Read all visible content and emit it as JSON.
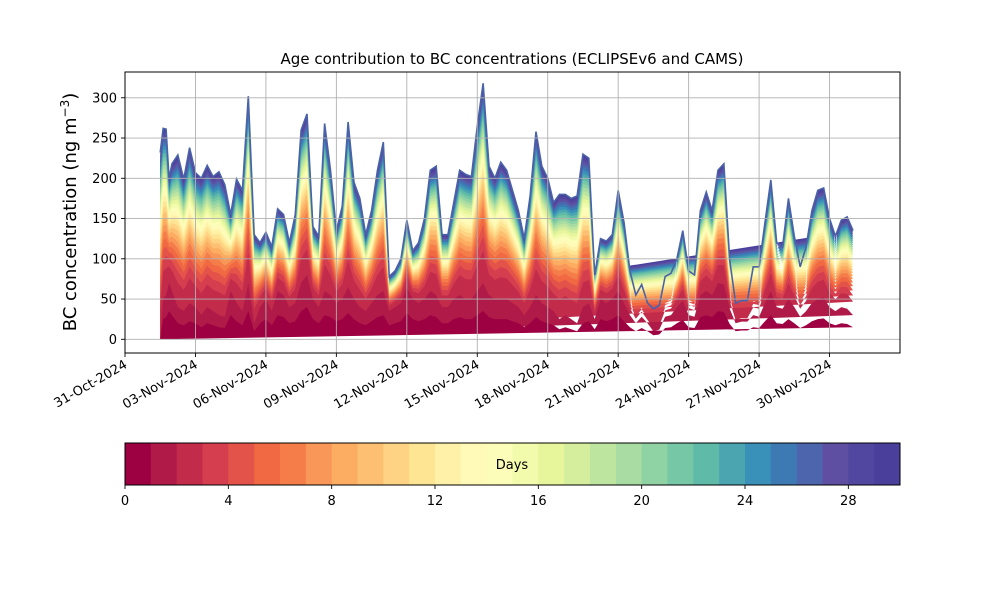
{
  "chart_data": {
    "type": "area",
    "title": "Age contribution to BC concentrations (ECLIPSEv6 and CAMS)",
    "xlabel": "",
    "ylabel": "BC concentration (ng m",
    "ylabel_superscript": "−3",
    "ylabel_suffix": ")",
    "ylim": [
      -17,
      332
    ],
    "xlim": [
      "2024-10-31T00:00",
      "2024-12-03T00:00"
    ],
    "grid": true,
    "x_tick_labels": [
      "31-Oct-2024",
      "03-Nov-2024",
      "06-Nov-2024",
      "09-Nov-2024",
      "12-Nov-2024",
      "15-Nov-2024",
      "18-Nov-2024",
      "21-Nov-2024",
      "24-Nov-2024",
      "27-Nov-2024",
      "30-Nov-2024"
    ],
    "x_tick_dates": [
      "2024-10-31",
      "2024-11-03",
      "2024-11-06",
      "2024-11-09",
      "2024-11-12",
      "2024-11-15",
      "2024-11-18",
      "2024-11-21",
      "2024-11-24",
      "2024-11-27",
      "2024-11-30"
    ],
    "y_ticks": [
      0,
      50,
      100,
      150,
      200,
      250,
      300
    ],
    "colorbar": {
      "label": "Days",
      "min": 0,
      "max": 30,
      "ticks": [
        0,
        4,
        8,
        12,
        16,
        20,
        24,
        28
      ],
      "n_bins": 30,
      "colormap": "Spectral",
      "colors": [
        "#9e0142",
        "#b01a48",
        "#c32b4b",
        "#d53e4f",
        "#e3534a",
        "#f06943",
        "#f57d4a",
        "#f99758",
        "#fcad61",
        "#fdc072",
        "#fed383",
        "#fee593",
        "#fff1a7",
        "#fffab8",
        "#fbfdb9",
        "#f2faac",
        "#e7f59b",
        "#d4ee9e",
        "#bee5a0",
        "#a8dca3",
        "#8fd2a4",
        "#75c7a5",
        "#60baa8",
        "#4aa5b1",
        "#3990b9",
        "#3d7ab4",
        "#4d65ad",
        "#5e4fa2",
        "#5146a0",
        "#4a3f9a"
      ]
    },
    "x": [
      "2024-11-01T12:00",
      "2024-11-01T15:00",
      "2024-11-01T18:00",
      "2024-11-01T21:00",
      "2024-11-02T00:00",
      "2024-11-02T06:00",
      "2024-11-02T12:00",
      "2024-11-02T18:00",
      "2024-11-03T00:00",
      "2024-11-03T06:00",
      "2024-11-03T12:00",
      "2024-11-03T18:00",
      "2024-11-04T00:00",
      "2024-11-04T06:00",
      "2024-11-04T12:00",
      "2024-11-04T18:00",
      "2024-11-05T00:00",
      "2024-11-05T06:00",
      "2024-11-05T12:00",
      "2024-11-05T18:00",
      "2024-11-06T00:00",
      "2024-11-06T06:00",
      "2024-11-06T12:00",
      "2024-11-06T18:00",
      "2024-11-07T00:00",
      "2024-11-07T06:00",
      "2024-11-07T12:00",
      "2024-11-07T18:00",
      "2024-11-08T00:00",
      "2024-11-08T06:00",
      "2024-11-08T12:00",
      "2024-11-08T18:00",
      "2024-11-09T00:00",
      "2024-11-09T06:00",
      "2024-11-09T12:00",
      "2024-11-09T18:00",
      "2024-11-10T00:00",
      "2024-11-10T06:00",
      "2024-11-10T12:00",
      "2024-11-10T18:00",
      "2024-11-11T00:00",
      "2024-11-11T06:00",
      "2024-11-11T12:00",
      "2024-11-11T18:00",
      "2024-11-12T00:00",
      "2024-11-12T06:00",
      "2024-11-12T12:00",
      "2024-11-12T18:00",
      "2024-11-13T00:00",
      "2024-11-13T06:00",
      "2024-11-13T12:00",
      "2024-11-13T18:00",
      "2024-11-14T00:00",
      "2024-11-14T06:00",
      "2024-11-14T12:00",
      "2024-11-14T18:00",
      "2024-11-15T00:00",
      "2024-11-15T06:00",
      "2024-11-15T12:00",
      "2024-11-15T18:00",
      "2024-11-16T00:00",
      "2024-11-16T06:00",
      "2024-11-16T12:00",
      "2024-11-16T18:00",
      "2024-11-17T00:00",
      "2024-11-17T06:00",
      "2024-11-17T12:00",
      "2024-11-17T18:00",
      "2024-11-18T00:00",
      "2024-11-18T06:00",
      "2024-11-18T12:00",
      "2024-11-18T18:00",
      "2024-11-19T00:00",
      "2024-11-19T06:00",
      "2024-11-19T12:00",
      "2024-11-19T18:00",
      "2024-11-20T00:00",
      "2024-11-20T06:00",
      "2024-11-20T12:00",
      "2024-11-20T18:00",
      "2024-11-21T00:00",
      "2024-11-21T06:00",
      "2024-11-21T12:00",
      "2024-11-21T18:00",
      "2024-11-22T00:00",
      "2024-11-22T06:00",
      "2024-11-22T12:00",
      "2024-11-22T18:00",
      "2024-11-23T00:00",
      "2024-11-23T06:00",
      "2024-11-23T12:00",
      "2024-11-23T18:00",
      "2024-11-24T00:00",
      "2024-11-24T06:00",
      "2024-11-24T12:00",
      "2024-11-24T18:00",
      "2024-11-25T00:00",
      "2024-11-25T06:00",
      "2024-11-25T12:00",
      "2024-11-25T18:00",
      "2024-11-26T00:00",
      "2024-11-26T06:00",
      "2024-11-26T12:00",
      "2024-11-26T18:00",
      "2024-11-27T00:00",
      "2024-11-27T06:00",
      "2024-11-27T12:00",
      "2024-11-27T18:00",
      "2024-11-28T00:00",
      "2024-11-28T06:00",
      "2024-11-28T12:00",
      "2024-11-28T18:00",
      "2024-11-29T00:00",
      "2024-11-29T06:00",
      "2024-11-29T12:00",
      "2024-11-29T18:00",
      "2024-11-30T00:00",
      "2024-11-30T06:00",
      "2024-11-30T12:00",
      "2024-11-30T18:00",
      "2024-12-01T00:00",
      "2024-12-01T06:00",
      "2024-12-01T09:00"
    ],
    "total": [
      232,
      262,
      261,
      200,
      218,
      229,
      199,
      238,
      207,
      200,
      216,
      202,
      208,
      192,
      155,
      199,
      185,
      302,
      130,
      120,
      133,
      115,
      162,
      155,
      120,
      155,
      260,
      280,
      140,
      128,
      268,
      210,
      135,
      165,
      270,
      195,
      175,
      130,
      160,
      210,
      245,
      78,
      85,
      100,
      148,
      110,
      120,
      150,
      210,
      215,
      130,
      130,
      170,
      210,
      205,
      202,
      265,
      318,
      215,
      200,
      220,
      210,
      185,
      160,
      125,
      178,
      258,
      215,
      200,
      170,
      180,
      180,
      175,
      178,
      230,
      225,
      80,
      125,
      122,
      130,
      185,
      145,
      85,
      55,
      68,
      45,
      38,
      42,
      78,
      82,
      100,
      135,
      85,
      80,
      160,
      183,
      160,
      210,
      218,
      98,
      45,
      48,
      48,
      90,
      90,
      145,
      198,
      120,
      115,
      175,
      128,
      90,
      115,
      160,
      185,
      188,
      150,
      128,
      148,
      152,
      135
    ],
    "fresh_0_2_days": [
      0,
      50,
      55,
      70,
      60,
      40,
      35,
      45,
      40,
      30,
      40,
      35,
      30,
      28,
      60,
      45,
      35,
      70,
      20,
      40,
      50,
      35,
      60,
      55,
      40,
      45,
      70,
      80,
      50,
      40,
      60,
      55,
      45,
      50,
      65,
      50,
      40,
      35,
      45,
      55,
      60,
      35,
      40,
      45,
      65,
      50,
      45,
      50,
      60,
      55,
      40,
      40,
      50,
      55,
      50,
      50,
      60,
      70,
      55,
      50,
      50,
      50,
      45,
      40,
      30,
      40,
      55,
      45,
      40,
      35,
      25,
      30,
      25,
      20,
      40,
      45,
      25,
      50,
      45,
      50,
      60,
      45,
      30,
      20,
      28,
      20,
      10,
      12,
      28,
      30,
      40,
      48,
      30,
      28,
      55,
      60,
      55,
      70,
      68,
      38,
      20,
      22,
      22,
      30,
      28,
      45,
      60,
      40,
      38,
      50,
      40,
      28,
      35,
      45,
      50,
      52,
      40,
      35,
      40,
      38,
      30
    ]
  }
}
